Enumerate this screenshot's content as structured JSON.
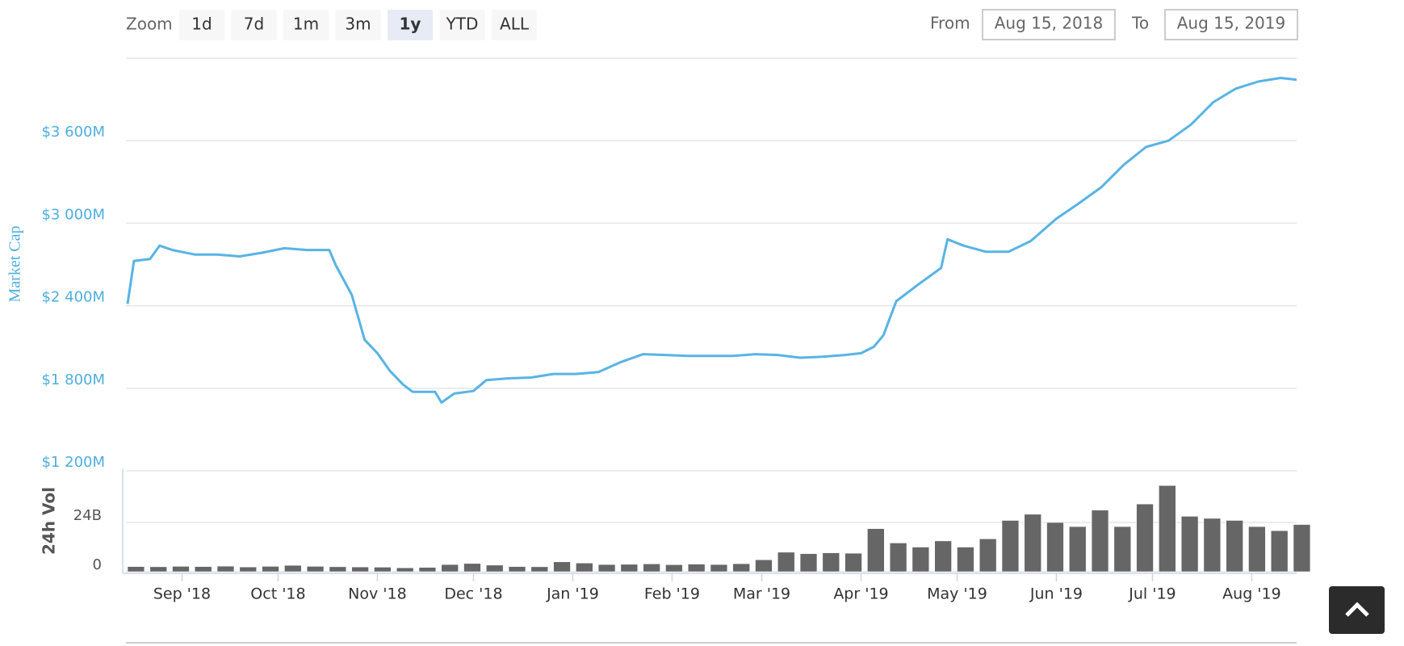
{
  "ui": {
    "zoom_label": "Zoom",
    "zoom_buttons": [
      "1d",
      "7d",
      "1m",
      "3m",
      "1y",
      "YTD",
      "ALL"
    ],
    "active_button": 4,
    "from_label": "From",
    "from_date": "Aug 15, 2018",
    "to_label": "To",
    "to_date": "Aug 15, 2019"
  },
  "chart_data": [
    {
      "type": "line",
      "y_label": "Market Cap",
      "color": "#59b3e5",
      "grid": true,
      "xlim": [
        "2018-08-15",
        "2019-08-15"
      ],
      "ylim": [
        1200,
        4200
      ],
      "yticks": [
        {
          "value": 1200,
          "label": "$1 200M"
        },
        {
          "value": 1800,
          "label": "$1 800M"
        },
        {
          "value": 2400,
          "label": "$2 400M"
        },
        {
          "value": 3000,
          "label": "$3 000M"
        },
        {
          "value": 3600,
          "label": "$3 600M"
        }
      ],
      "x": [
        "2018-08-15",
        "2018-08-17",
        "2018-08-22",
        "2018-08-25",
        "2018-08-29",
        "2018-09-05",
        "2018-09-12",
        "2018-09-19",
        "2018-09-26",
        "2018-10-03",
        "2018-10-10",
        "2018-10-17",
        "2018-10-19",
        "2018-10-24",
        "2018-10-28",
        "2018-11-01",
        "2018-11-05",
        "2018-11-09",
        "2018-11-12",
        "2018-11-19",
        "2018-11-21",
        "2018-11-25",
        "2018-12-01",
        "2018-12-05",
        "2018-12-12",
        "2018-12-19",
        "2018-12-26",
        "2019-01-02",
        "2019-01-09",
        "2019-01-16",
        "2019-01-23",
        "2019-01-30",
        "2019-02-06",
        "2019-02-13",
        "2019-02-20",
        "2019-02-27",
        "2019-03-06",
        "2019-03-13",
        "2019-03-20",
        "2019-03-27",
        "2019-04-01",
        "2019-04-05",
        "2019-04-08",
        "2019-04-12",
        "2019-04-19",
        "2019-04-26",
        "2019-04-28",
        "2019-05-03",
        "2019-05-10",
        "2019-05-17",
        "2019-05-24",
        "2019-06-01",
        "2019-06-08",
        "2019-06-15",
        "2019-06-22",
        "2019-06-29",
        "2019-07-06",
        "2019-07-13",
        "2019-07-20",
        "2019-07-27",
        "2019-08-03",
        "2019-08-10",
        "2019-08-15"
      ],
      "values": [
        2413,
        2726,
        2740,
        2837,
        2805,
        2772,
        2772,
        2759,
        2785,
        2818,
        2805,
        2805,
        2694,
        2479,
        2153,
        2055,
        1924,
        1827,
        1774,
        1774,
        1696,
        1761,
        1780,
        1859,
        1872,
        1878,
        1904,
        1904,
        1918,
        1990,
        2048,
        2042,
        2035,
        2035,
        2035,
        2048,
        2042,
        2022,
        2029,
        2042,
        2055,
        2101,
        2185,
        2433,
        2557,
        2674,
        2883,
        2837,
        2792,
        2792,
        2870,
        3033,
        3144,
        3261,
        3424,
        3554,
        3600,
        3717,
        3880,
        3978,
        4030,
        4056,
        4043
      ]
    },
    {
      "type": "bar",
      "y_label": "24h Vol",
      "color": "#666666",
      "grid": true,
      "xlim": [
        "2018-08-15",
        "2019-08-15"
      ],
      "ylim": [
        0,
        50
      ],
      "yticks": [
        0,
        {
          "value": 24,
          "label": "24B"
        }
      ],
      "xticks": [
        {
          "value": "2018-09-01",
          "label": "Sep '18"
        },
        {
          "value": "2018-10-01",
          "label": "Oct '18"
        },
        {
          "value": "2018-11-01",
          "label": "Nov '18"
        },
        {
          "value": "2018-12-01",
          "label": "Dec '18"
        },
        {
          "value": "2019-01-01",
          "label": "Jan '19"
        },
        {
          "value": "2019-02-01",
          "label": "Feb '19"
        },
        {
          "value": "2019-03-01",
          "label": "Mar '19"
        },
        {
          "value": "2019-04-01",
          "label": "Apr '19"
        },
        {
          "value": "2019-05-01",
          "label": "May '19"
        },
        {
          "value": "2019-06-01",
          "label": "Jun '19"
        },
        {
          "value": "2019-07-01",
          "label": "Jul '19"
        },
        {
          "value": "2019-08-01",
          "label": "Aug '19"
        }
      ],
      "x": [
        "2018-08-15",
        "2018-08-22",
        "2018-08-29",
        "2018-09-05",
        "2018-09-12",
        "2018-09-19",
        "2018-09-26",
        "2018-10-03",
        "2018-10-10",
        "2018-10-17",
        "2018-10-24",
        "2018-10-31",
        "2018-11-07",
        "2018-11-14",
        "2018-11-21",
        "2018-11-28",
        "2018-12-05",
        "2018-12-12",
        "2018-12-19",
        "2018-12-26",
        "2019-01-02",
        "2019-01-09",
        "2019-01-16",
        "2019-01-23",
        "2019-01-30",
        "2019-02-06",
        "2019-02-13",
        "2019-02-20",
        "2019-02-27",
        "2019-03-06",
        "2019-03-13",
        "2019-03-20",
        "2019-03-27",
        "2019-04-03",
        "2019-04-10",
        "2019-04-17",
        "2019-04-24",
        "2019-05-01",
        "2019-05-08",
        "2019-05-15",
        "2019-05-22",
        "2019-05-29",
        "2019-06-05",
        "2019-06-12",
        "2019-06-19",
        "2019-06-26",
        "2019-07-03",
        "2019-07-10",
        "2019-07-17",
        "2019-07-24",
        "2019-07-31",
        "2019-08-07",
        "2019-08-14"
      ],
      "values": [
        2.5,
        2.4,
        2.6,
        2.5,
        2.7,
        2.3,
        2.6,
        3.1,
        2.6,
        2.4,
        2.3,
        2.2,
        1.9,
        2.1,
        3.5,
        4.0,
        3.2,
        2.5,
        2.4,
        4.8,
        4.2,
        3.5,
        3.6,
        3.8,
        3.4,
        3.7,
        3.5,
        3.9,
        5.8,
        9.5,
        8.8,
        9.2,
        9.0,
        21,
        14,
        12,
        15,
        12,
        16,
        25,
        28,
        24,
        22,
        30,
        22,
        33,
        42,
        27,
        26,
        25,
        22,
        20,
        23
      ]
    }
  ]
}
